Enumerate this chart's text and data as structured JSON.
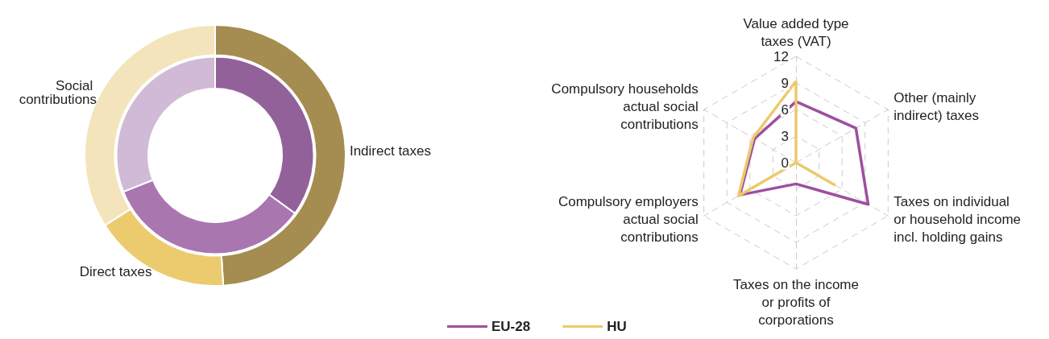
{
  "chart_data": [
    {
      "type": "donut",
      "categories": [
        "Indirect taxes",
        "Direct taxes",
        "Social contributions"
      ],
      "series": [
        {
          "values": [
            35,
            34,
            31
          ],
          "colors": [
            "#93619a",
            "#a976b0",
            "#d0bad5"
          ]
        },
        {
          "values": [
            49,
            17,
            34
          ],
          "colors": [
            "#a58c50",
            "#ebcb6e",
            "#f3e4bb"
          ]
        }
      ]
    },
    {
      "type": "radar",
      "categories": [
        "Value added type taxes (VAT)",
        "Other (mainly indirect) taxes",
        "Taxes on individual or household income incl. holding gains",
        "Taxes on the income or profits of corporations",
        "Compulsory employers actual social contributions",
        "Compulsory households actual social contributions"
      ],
      "ylim": [
        0,
        12
      ],
      "yticks": [
        0,
        3,
        6,
        9,
        12
      ],
      "legend": "bottom",
      "series": [
        {
          "name": "EU-28",
          "color": "#9e4f9f",
          "values": [
            6.9,
            7.8,
            9.4,
            2.4,
            7.3,
            5.4
          ]
        },
        {
          "name": "HU",
          "color": "#ecc96b",
          "values": [
            9.2,
            0,
            5.0,
            0,
            7.5,
            5.6
          ]
        }
      ]
    }
  ]
}
